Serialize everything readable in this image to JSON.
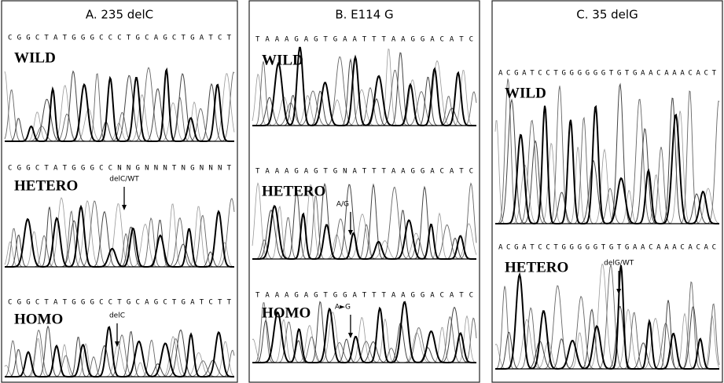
{
  "panels": [
    {
      "title": "A. 235 delC",
      "rows": [
        {
          "sequence": "CGGCTATGGGCCCTGCAGCTGATCT",
          "label": "WILD"
        },
        {
          "sequence": "CGGCTATGGGCCNNGNNNTNGNNNT",
          "label": "HETERO",
          "annotation": "delC/WT"
        },
        {
          "sequence": "CGGCTATGGGCCTGCAGCTGATCTT",
          "label": "HOMO",
          "annotation": "delC"
        }
      ]
    },
    {
      "title": "B. E114 G",
      "rows": [
        {
          "sequence": "TAAAGAGTGAATTTAAGGACATC",
          "label": "WILD"
        },
        {
          "sequence": "TAAAGAGTGNATTTAAGGACATC",
          "label": "HETERO",
          "annotation": "A/G"
        },
        {
          "sequence": "TAAAGAGTGGATTTAAGGACATC",
          "label": "HOMO",
          "annotation": "A►G"
        }
      ]
    },
    {
      "title": "C. 35 delG",
      "rows": [
        {
          "sequence": "ACGATCCTGGGGGGTGTGAACAAACACT",
          "label": "WILD"
        },
        {
          "sequence": "ACGATCCTGGGGGTGTGAACAAACACAC",
          "label": "HETERO",
          "annotation": "delG/WT"
        }
      ]
    }
  ]
}
